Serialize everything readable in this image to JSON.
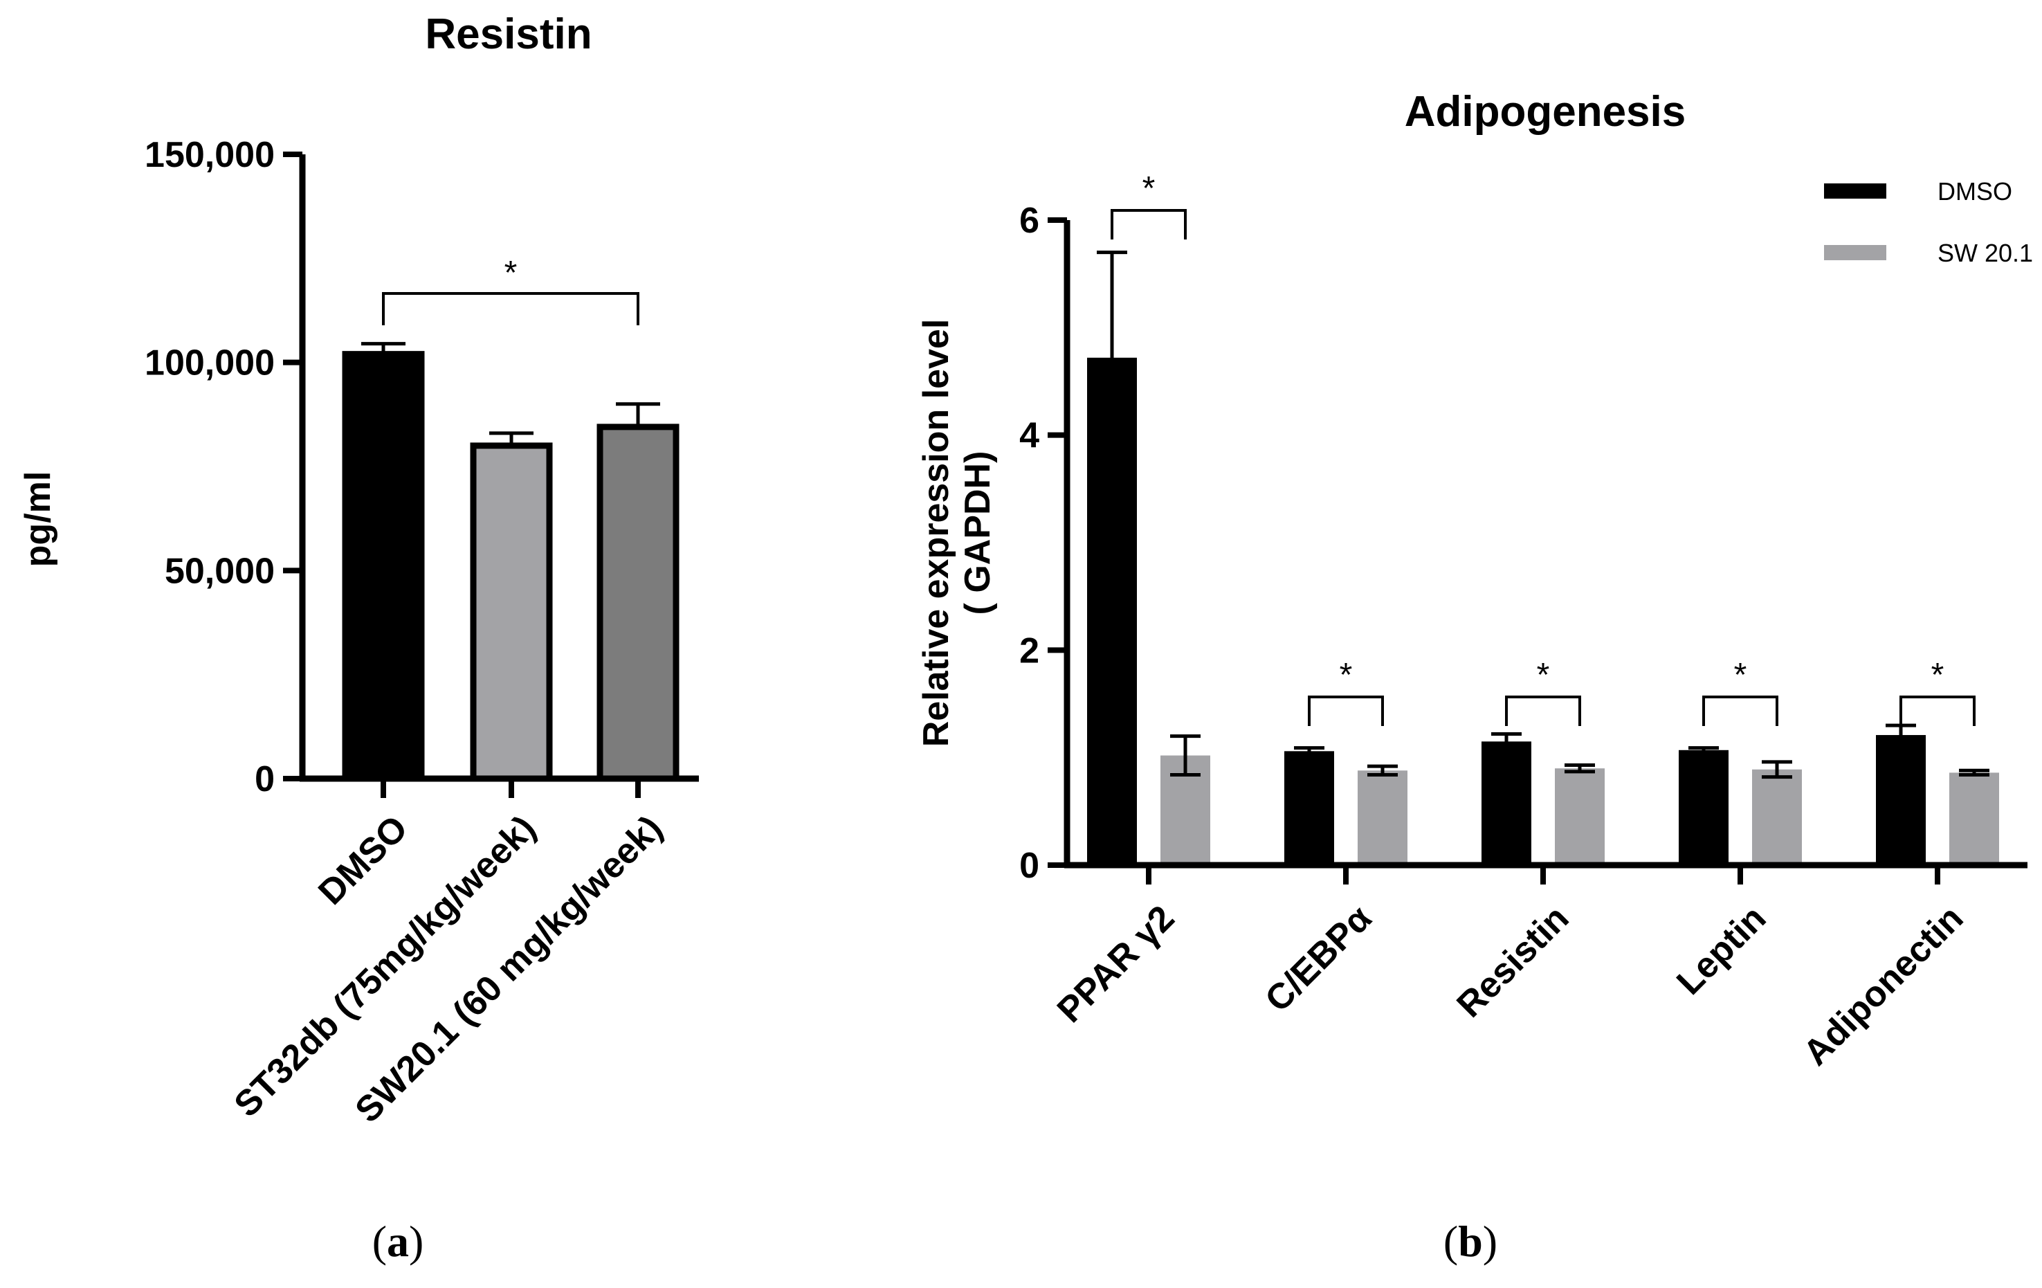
{
  "chart_data": [
    {
      "type": "bar",
      "panel_label": {
        "open": "(",
        "letter": "a",
        "close": ")"
      },
      "title": "Resistin",
      "ylabel": "pg/ml",
      "xlabel": "",
      "ylim": [
        0,
        150000
      ],
      "ytick_values": [
        0,
        50000,
        100000,
        150000
      ],
      "ytick_labels": [
        "0",
        "50,000",
        "100,000",
        "150,000"
      ],
      "categories": [
        "DMSO",
        "ST32db (75mg/kg/week)",
        "SW20.1 (60 mg/kg/week)"
      ],
      "values": [
        102000,
        80000,
        84500
      ],
      "errors": [
        2500,
        3000,
        5500
      ],
      "colors": [
        "#000000",
        "#a3a3a6",
        "#7c7c7c"
      ],
      "significance": [
        {
          "from": 0,
          "to": 2,
          "label": "*"
        }
      ]
    },
    {
      "type": "bar",
      "panel_label": {
        "open": "(",
        "letter": "b",
        "close": ")"
      },
      "title": "Adipogenesis",
      "ylabel_lines": [
        "Relative expression level",
        "( GAPDH)"
      ],
      "xlabel": "",
      "ylim": [
        0,
        6
      ],
      "ytick_values": [
        0,
        2,
        4,
        6
      ],
      "ytick_labels": [
        "0",
        "2",
        "4",
        "6"
      ],
      "categories": [
        "PPAR γ2",
        "C/EBPα",
        "Resistin",
        "Leptin",
        "Adiponectin"
      ],
      "series": [
        {
          "name": "DMSO",
          "color": "#000000",
          "values": [
            4.72,
            1.06,
            1.15,
            1.07,
            1.21
          ],
          "errors": [
            0.98,
            0.03,
            0.07,
            0.02,
            0.09
          ]
        },
        {
          "name": "SW 20.1",
          "color": "#a3a3a6",
          "values": [
            1.02,
            0.88,
            0.9,
            0.89,
            0.86
          ],
          "errors": [
            0.18,
            0.04,
            0.03,
            0.07,
            0.02
          ]
        }
      ],
      "legend_position": "top-right",
      "significance": [
        {
          "category": 0,
          "label": "*"
        },
        {
          "category": 1,
          "label": "*"
        },
        {
          "category": 2,
          "label": "*"
        },
        {
          "category": 3,
          "label": "*"
        },
        {
          "category": 4,
          "label": "*"
        }
      ]
    }
  ]
}
